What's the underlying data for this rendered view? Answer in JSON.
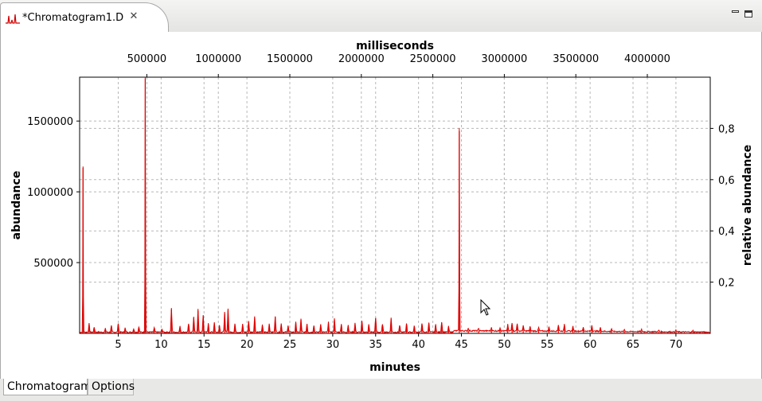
{
  "tab": {
    "title": "*Chromatogram1.D",
    "close_symbol": "✕",
    "icon": "chromatogram-icon"
  },
  "window_controls": {
    "minimize_icon": "minimize-icon",
    "maximize_icon": "maximize-icon"
  },
  "bottom_tabs": [
    {
      "label": "Chromatogram",
      "active": true
    },
    {
      "label": "Options",
      "active": false
    }
  ],
  "colors": {
    "trace": "#e00000",
    "grid": "#b8b8b8"
  },
  "chart_data": {
    "type": "line",
    "title": "",
    "xlabel": "minutes",
    "x2label": "milliseconds",
    "ylabel": "abundance",
    "y2label": "relative abundance",
    "xlim": [
      0.5,
      74
    ],
    "ylim": [
      0,
      1810000
    ],
    "y2lim": [
      0,
      1.0
    ],
    "x_ticks": [
      5,
      10,
      15,
      20,
      25,
      30,
      35,
      40,
      45,
      50,
      55,
      60,
      65,
      70
    ],
    "x2_ticks": [
      500000,
      1000000,
      1500000,
      2000000,
      2500000,
      3000000,
      3500000,
      4000000
    ],
    "y_ticks": [
      500000,
      1000000,
      1500000
    ],
    "y2_ticks": [
      "0,2",
      "0,4",
      "0,6",
      "0,8"
    ],
    "y2_tick_values": [
      0.2,
      0.4,
      0.6,
      0.8
    ],
    "grid": true,
    "series": [
      {
        "peaks": [
          [
            0.9,
            1170000
          ],
          [
            1.6,
            60000
          ],
          [
            2.2,
            35000
          ],
          [
            3.5,
            25000
          ],
          [
            4.2,
            45000
          ],
          [
            5.0,
            65000
          ],
          [
            5.8,
            30000
          ],
          [
            6.8,
            25000
          ],
          [
            7.4,
            40000
          ],
          [
            8.15,
            1800000
          ],
          [
            9.2,
            30000
          ],
          [
            10.1,
            25000
          ],
          [
            11.2,
            170000
          ],
          [
            12.2,
            40000
          ],
          [
            13.2,
            60000
          ],
          [
            13.8,
            110000
          ],
          [
            14.3,
            160000
          ],
          [
            14.9,
            120000
          ],
          [
            15.5,
            60000
          ],
          [
            16.2,
            70000
          ],
          [
            16.8,
            50000
          ],
          [
            17.4,
            140000
          ],
          [
            17.8,
            165000
          ],
          [
            18.6,
            60000
          ],
          [
            19.5,
            55000
          ],
          [
            20.2,
            80000
          ],
          [
            20.9,
            110000
          ],
          [
            21.8,
            50000
          ],
          [
            22.6,
            60000
          ],
          [
            23.3,
            115000
          ],
          [
            24.0,
            60000
          ],
          [
            24.8,
            50000
          ],
          [
            25.7,
            70000
          ],
          [
            26.3,
            95000
          ],
          [
            27.0,
            60000
          ],
          [
            27.8,
            50000
          ],
          [
            28.6,
            60000
          ],
          [
            29.5,
            70000
          ],
          [
            30.2,
            95000
          ],
          [
            31.0,
            60000
          ],
          [
            31.8,
            50000
          ],
          [
            32.6,
            65000
          ],
          [
            33.4,
            80000
          ],
          [
            34.2,
            55000
          ],
          [
            35.0,
            105000
          ],
          [
            35.8,
            60000
          ],
          [
            36.8,
            100000
          ],
          [
            37.8,
            50000
          ],
          [
            38.6,
            65000
          ],
          [
            39.5,
            45000
          ],
          [
            40.4,
            65000
          ],
          [
            41.2,
            70000
          ],
          [
            42.0,
            55000
          ],
          [
            42.7,
            75000
          ],
          [
            43.5,
            40000
          ],
          [
            44.75,
            1430000
          ],
          [
            45.8,
            20000
          ],
          [
            47.0,
            20000
          ],
          [
            48.5,
            25000
          ],
          [
            49.5,
            25000
          ],
          [
            50.4,
            45000
          ],
          [
            50.9,
            60000
          ],
          [
            51.5,
            55000
          ],
          [
            52.2,
            40000
          ],
          [
            53.0,
            30000
          ],
          [
            54.0,
            25000
          ],
          [
            55.2,
            30000
          ],
          [
            56.3,
            45000
          ],
          [
            57.0,
            50000
          ],
          [
            58.0,
            35000
          ],
          [
            59.2,
            30000
          ],
          [
            60.2,
            45000
          ],
          [
            61.2,
            25000
          ],
          [
            62.5,
            20000
          ],
          [
            64.0,
            15000
          ],
          [
            66.0,
            15000
          ],
          [
            68.0,
            12000
          ],
          [
            70.0,
            12000
          ],
          [
            72.0,
            10000
          ]
        ]
      }
    ]
  }
}
